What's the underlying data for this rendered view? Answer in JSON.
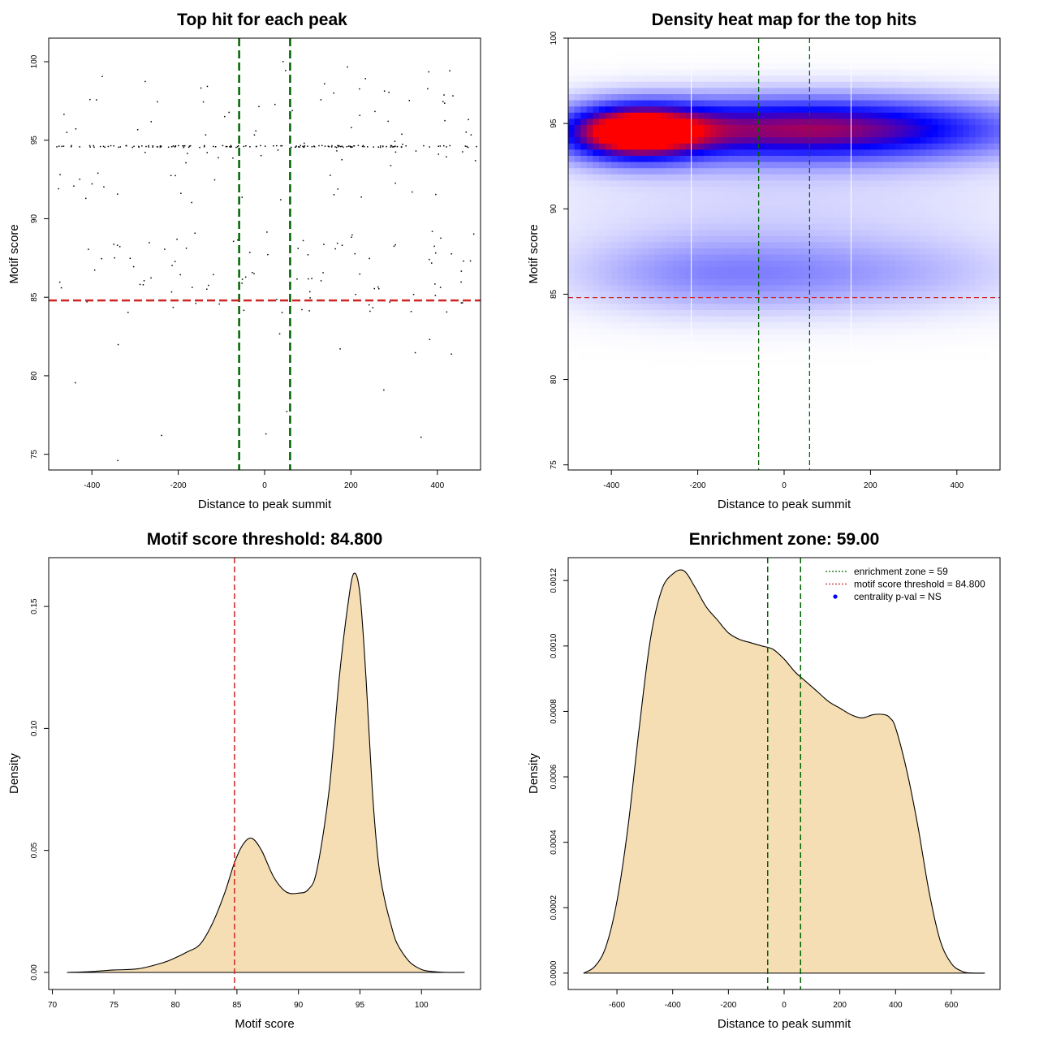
{
  "colors": {
    "enrichment": "#006400",
    "threshold": "#cd2626",
    "density_fill": "#f5deb3",
    "heat_low": "#ffffff",
    "heat_mid": "#0000ff",
    "heat_high": "#ff0000",
    "point": "#000000",
    "legend_dot": "#0000ff"
  },
  "chart_data": [
    {
      "type": "scatter",
      "title": "Top hit for each peak",
      "xlabel": "Distance to peak summit",
      "ylabel": "Motif score",
      "xlim": [
        -500,
        500
      ],
      "ylim": [
        74,
        101.5
      ],
      "xticks": [
        -400,
        -200,
        0,
        200,
        400
      ],
      "yticks": [
        75,
        80,
        85,
        90,
        95,
        100
      ],
      "vlines": [
        -59,
        59
      ],
      "hline": 84.8,
      "points_ref": "generated_scatter_estimate"
    },
    {
      "type": "heatmap",
      "title": "Density heat map for the top hits",
      "xlabel": "Distance to peak summit",
      "ylabel": "Motif score",
      "xlim": [
        -500,
        500
      ],
      "ylim": [
        74.7,
        100
      ],
      "xticks": [
        -400,
        -200,
        0,
        200,
        400
      ],
      "yticks": [
        75,
        80,
        85,
        90,
        95,
        100
      ],
      "vlines": [
        -59,
        59
      ],
      "white_vlines": [
        -215,
        155
      ],
      "hline": 84.8,
      "hotspots": [
        {
          "x": -350,
          "y": 94.5,
          "sx": 110,
          "sy": 1.1,
          "w": 1.0
        },
        {
          "x": -100,
          "y": 94.7,
          "sx": 260,
          "sy": 1.3,
          "w": 0.55
        },
        {
          "x": 250,
          "y": 94.7,
          "sx": 260,
          "sy": 1.3,
          "w": 0.5
        },
        {
          "x": -200,
          "y": 86.2,
          "sx": 220,
          "sy": 1.6,
          "w": 0.22
        },
        {
          "x": 200,
          "y": 86.2,
          "sx": 260,
          "sy": 1.6,
          "w": 0.18
        },
        {
          "x": 0,
          "y": 90.5,
          "sx": 450,
          "sy": 2.2,
          "w": 0.09
        }
      ]
    },
    {
      "type": "area",
      "title": "Motif score threshold: 84.800",
      "xlabel": "Motif score",
      "ylabel": "Density",
      "xlim": [
        69.7,
        104.8
      ],
      "ylim": [
        -0.007,
        0.17
      ],
      "xticks": [
        70,
        75,
        80,
        85,
        90,
        95,
        100
      ],
      "yticks": [
        0.0,
        0.05,
        0.1,
        0.15
      ],
      "ytick_labels": [
        "0.00",
        "0.05",
        "0.10",
        "0.15"
      ],
      "vline": 84.8,
      "x": [
        71.2,
        73,
        75,
        77,
        79,
        80,
        81,
        82,
        83,
        84,
        84.8,
        85.5,
        86.2,
        87,
        88,
        89,
        90,
        90.8,
        91.5,
        92.5,
        93.3,
        94,
        94.5,
        95,
        95.5,
        96,
        96.5,
        97,
        97.5,
        98,
        99,
        100,
        101,
        102,
        103.5
      ],
      "y": [
        0.0,
        0.0003,
        0.001,
        0.0015,
        0.004,
        0.006,
        0.0085,
        0.0115,
        0.02,
        0.0325,
        0.045,
        0.0525,
        0.055,
        0.05,
        0.039,
        0.033,
        0.0325,
        0.034,
        0.042,
        0.075,
        0.12,
        0.15,
        0.1635,
        0.155,
        0.12,
        0.075,
        0.045,
        0.03,
        0.02,
        0.012,
        0.0045,
        0.0012,
        0.0003,
        0.0,
        0.0
      ]
    },
    {
      "type": "area",
      "title": "Enrichment zone: 59.00",
      "xlabel": "Distance to peak summit",
      "ylabel": "Density",
      "xlim": [
        -775,
        775
      ],
      "ylim": [
        -5e-05,
        0.00127
      ],
      "xticks": [
        -600,
        -400,
        -200,
        0,
        200,
        400,
        600
      ],
      "yticks": [
        0.0,
        0.0002,
        0.0004,
        0.0006,
        0.0008,
        0.001,
        0.0012
      ],
      "ytick_labels": [
        "0.0000",
        "0.0002",
        "0.0004",
        "0.0006",
        "0.0008",
        "0.0010",
        "0.0012"
      ],
      "vlines": [
        -59,
        59
      ],
      "x": [
        -720,
        -680,
        -640,
        -600,
        -560,
        -520,
        -480,
        -440,
        -400,
        -360,
        -320,
        -280,
        -240,
        -200,
        -160,
        -120,
        -80,
        -40,
        0,
        40,
        80,
        120,
        160,
        200,
        240,
        280,
        320,
        360,
        380,
        400,
        440,
        480,
        520,
        560,
        600,
        640,
        680,
        720
      ],
      "y": [
        0.0,
        2e-05,
        8e-05,
        0.00022,
        0.00045,
        0.00075,
        0.00102,
        0.00117,
        0.00122,
        0.00123,
        0.00118,
        0.00112,
        0.00108,
        0.00104,
        0.00102,
        0.00101,
        0.001,
        0.00099,
        0.00096,
        0.00092,
        0.00089,
        0.00086,
        0.00083,
        0.00081,
        0.00079,
        0.00078,
        0.00079,
        0.00079,
        0.00078,
        0.00075,
        0.00062,
        0.00045,
        0.00025,
        0.0001,
        3e-05,
        5e-06,
        0.0,
        0.0
      ]
    }
  ],
  "legend": {
    "enrichment": "enrichment zone = 59",
    "threshold": "motif score threshold = 84.800",
    "pval": "centrality p-val = NS"
  }
}
